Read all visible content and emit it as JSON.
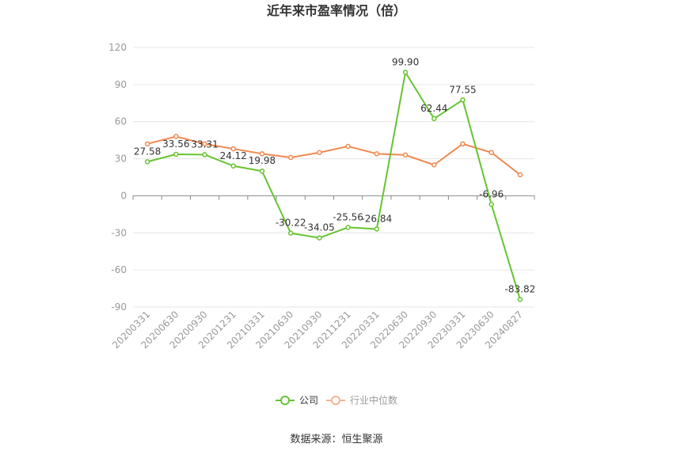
{
  "chart_data": {
    "type": "line",
    "title": "近年来市盈率情况（倍）",
    "categories": [
      "20200331",
      "20200630",
      "20200930",
      "20201231",
      "20210331",
      "20210630",
      "20210930",
      "20211231",
      "20220331",
      "20220630",
      "20220930",
      "20230331",
      "20230630",
      "20240827"
    ],
    "ylim": [
      -90,
      120
    ],
    "yticks": [
      -90,
      -60,
      -30,
      0,
      30,
      60,
      90,
      120
    ],
    "grid": true,
    "legend_position": "bottom",
    "series": [
      {
        "name": "公司",
        "color": "#66c431",
        "values": [
          27.58,
          33.56,
          33.31,
          24.12,
          19.98,
          -30.22,
          -34.05,
          -25.56,
          -26.84,
          99.9,
          62.44,
          77.55,
          -6.96,
          -83.82
        ],
        "labels": [
          "27.58",
          "33.56",
          "33.31",
          "24.12",
          "19.98",
          "-30.22",
          "-34.05",
          "-25.56",
          "-26.84",
          "99.90",
          "62.44",
          "77.55",
          "-6.96",
          "-83.82"
        ]
      },
      {
        "name": "行业中位数",
        "color": "#f08850",
        "values": [
          42,
          48,
          42,
          38,
          34,
          31,
          35,
          40,
          34,
          33,
          25,
          42,
          35,
          17
        ]
      }
    ]
  },
  "source": "数据来源：恒生聚源"
}
